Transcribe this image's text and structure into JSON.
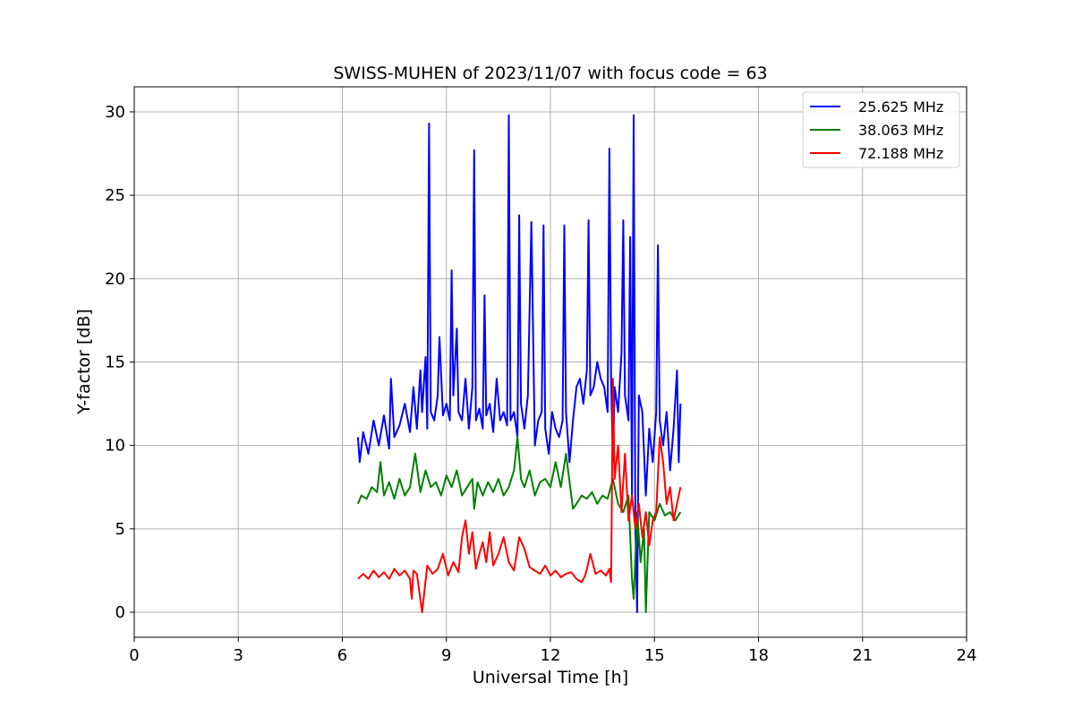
{
  "chart_data": {
    "type": "line",
    "title": "SWISS-MUHEN of 2023/11/07 with focus code = 63",
    "xlabel": "Universal Time [h]",
    "ylabel": "Y-factor [dB]",
    "xlim": [
      0,
      24
    ],
    "ylim": [
      -1.5,
      31.5
    ],
    "xticks": [
      0,
      3,
      6,
      9,
      12,
      15,
      18,
      21,
      24
    ],
    "yticks": [
      0,
      5,
      10,
      15,
      20,
      25,
      30
    ],
    "grid": true,
    "legend_position": "top-right",
    "series": [
      {
        "name": "25.625 MHz",
        "color": "#0000ff",
        "x": [
          6.45,
          6.5,
          6.6,
          6.75,
          6.9,
          7.05,
          7.2,
          7.35,
          7.4,
          7.5,
          7.65,
          7.8,
          7.95,
          8.05,
          8.15,
          8.25,
          8.3,
          8.4,
          8.45,
          8.5,
          8.55,
          8.65,
          8.75,
          8.8,
          8.9,
          9.0,
          9.1,
          9.15,
          9.2,
          9.3,
          9.35,
          9.45,
          9.55,
          9.65,
          9.75,
          9.8,
          9.85,
          9.95,
          10.05,
          10.1,
          10.15,
          10.25,
          10.35,
          10.45,
          10.55,
          10.65,
          10.75,
          10.8,
          10.85,
          10.95,
          11.05,
          11.1,
          11.15,
          11.25,
          11.35,
          11.45,
          11.55,
          11.65,
          11.75,
          11.8,
          11.85,
          11.95,
          12.05,
          12.15,
          12.25,
          12.35,
          12.4,
          12.45,
          12.55,
          12.65,
          12.75,
          12.85,
          12.95,
          13.05,
          13.1,
          13.15,
          13.25,
          13.35,
          13.45,
          13.55,
          13.65,
          13.7,
          13.75,
          13.8,
          13.85,
          13.95,
          14.05,
          14.1,
          14.15,
          14.25,
          14.3,
          14.35,
          14.4,
          14.45,
          14.5,
          14.55,
          14.65,
          14.75,
          14.85,
          14.95,
          15.05,
          15.1,
          15.15,
          15.25,
          15.35,
          15.45,
          15.55,
          15.65,
          15.7,
          15.75
        ],
        "y": [
          10.5,
          9.0,
          10.8,
          9.5,
          11.5,
          10.0,
          11.8,
          9.8,
          14.0,
          10.5,
          11.2,
          12.5,
          10.8,
          13.5,
          11.0,
          14.5,
          12.0,
          15.3,
          11.0,
          29.3,
          12.0,
          11.5,
          13.0,
          16.5,
          11.8,
          12.5,
          11.5,
          20.5,
          13.0,
          17.0,
          12.0,
          11.5,
          14.0,
          11.0,
          13.5,
          27.7,
          11.5,
          12.2,
          11.0,
          19.0,
          11.8,
          12.5,
          10.8,
          14.0,
          11.5,
          12.0,
          11.2,
          29.8,
          11.5,
          12.0,
          10.5,
          23.8,
          12.5,
          11.0,
          13.0,
          23.4,
          10.0,
          11.5,
          12.0,
          23.2,
          11.0,
          9.5,
          12.0,
          11.0,
          10.5,
          11.5,
          23.2,
          12.0,
          9.0,
          11.5,
          13.5,
          14.0,
          12.5,
          14.5,
          23.5,
          13.0,
          13.5,
          15.0,
          14.0,
          13.5,
          12.0,
          27.8,
          14.0,
          9.0,
          13.5,
          12.0,
          15.5,
          23.5,
          13.0,
          11.5,
          22.5,
          7.0,
          29.8,
          5.0,
          0.0,
          13.0,
          12.0,
          7.0,
          11.0,
          9.0,
          12.0,
          22.0,
          11.5,
          10.0,
          12.0,
          8.5,
          11.0,
          14.5,
          9.0,
          12.5
        ]
      },
      {
        "name": "38.063 MHz",
        "color": "#008000",
        "x": [
          6.45,
          6.55,
          6.7,
          6.85,
          7.0,
          7.1,
          7.2,
          7.35,
          7.5,
          7.65,
          7.8,
          7.95,
          8.1,
          8.25,
          8.4,
          8.55,
          8.7,
          8.85,
          9.0,
          9.15,
          9.3,
          9.45,
          9.6,
          9.75,
          9.8,
          9.9,
          10.05,
          10.2,
          10.35,
          10.5,
          10.65,
          10.8,
          10.95,
          11.05,
          11.15,
          11.25,
          11.4,
          11.55,
          11.7,
          11.85,
          12.0,
          12.15,
          12.3,
          12.45,
          12.6,
          12.65,
          12.75,
          12.9,
          13.05,
          13.2,
          13.35,
          13.5,
          13.65,
          13.8,
          13.95,
          14.1,
          14.25,
          14.35,
          14.4,
          14.5,
          14.6,
          14.7,
          14.75,
          14.85,
          15.0,
          15.15,
          15.3,
          15.45,
          15.6,
          15.75
        ],
        "y": [
          6.5,
          7.0,
          6.8,
          7.5,
          7.2,
          9.0,
          7.0,
          7.8,
          6.8,
          8.0,
          7.0,
          7.5,
          9.5,
          7.2,
          8.5,
          7.5,
          7.8,
          7.0,
          8.2,
          7.5,
          8.5,
          7.0,
          7.5,
          8.0,
          6.2,
          7.8,
          7.0,
          7.8,
          7.2,
          8.0,
          7.0,
          7.5,
          8.5,
          10.5,
          8.0,
          7.5,
          8.5,
          7.0,
          7.8,
          8.0,
          7.5,
          9.0,
          7.5,
          9.5,
          7.0,
          6.2,
          6.5,
          7.0,
          6.8,
          7.2,
          6.5,
          7.0,
          6.8,
          8.0,
          6.5,
          6.0,
          7.0,
          2.0,
          0.8,
          6.0,
          3.0,
          5.0,
          0.0,
          6.0,
          5.5,
          6.5,
          5.8,
          6.0,
          5.5,
          6.0
        ]
      },
      {
        "name": "72.188 MHz",
        "color": "#ff0000",
        "x": [
          6.45,
          6.6,
          6.75,
          6.9,
          7.05,
          7.2,
          7.35,
          7.5,
          7.65,
          7.8,
          7.95,
          8.0,
          8.05,
          8.15,
          8.3,
          8.45,
          8.6,
          8.75,
          8.9,
          9.05,
          9.2,
          9.35,
          9.45,
          9.55,
          9.65,
          9.75,
          9.85,
          9.95,
          10.05,
          10.15,
          10.25,
          10.35,
          10.5,
          10.65,
          10.8,
          10.95,
          11.1,
          11.25,
          11.4,
          11.55,
          11.7,
          11.85,
          12.0,
          12.15,
          12.3,
          12.45,
          12.6,
          12.75,
          12.9,
          13.0,
          13.05,
          13.15,
          13.3,
          13.45,
          13.6,
          13.7,
          13.75,
          13.8,
          13.85,
          13.95,
          14.05,
          14.15,
          14.25,
          14.35,
          14.45,
          14.55,
          14.65,
          14.75,
          14.85,
          14.95,
          15.05,
          15.15,
          15.25,
          15.35,
          15.45,
          15.55,
          15.65,
          15.75
        ],
        "y": [
          2.0,
          2.3,
          2.0,
          2.5,
          2.1,
          2.4,
          2.0,
          2.6,
          2.2,
          2.5,
          2.0,
          0.8,
          2.5,
          2.3,
          0.0,
          2.8,
          2.3,
          2.6,
          3.5,
          2.2,
          3.0,
          2.4,
          4.5,
          5.5,
          3.5,
          4.8,
          2.6,
          3.5,
          4.2,
          3.0,
          4.8,
          2.8,
          3.5,
          4.5,
          3.0,
          2.5,
          4.5,
          3.8,
          2.7,
          2.5,
          2.3,
          2.8,
          2.2,
          2.5,
          2.1,
          2.3,
          2.4,
          2.0,
          1.8,
          2.2,
          2.6,
          3.5,
          2.3,
          2.5,
          2.2,
          2.6,
          1.8,
          14.0,
          8.0,
          10.0,
          6.0,
          9.5,
          5.5,
          7.0,
          5.0,
          6.5,
          4.5,
          6.0,
          4.0,
          5.5,
          6.0,
          10.5,
          9.0,
          6.5,
          7.5,
          5.5,
          6.5,
          7.5
        ]
      }
    ]
  }
}
